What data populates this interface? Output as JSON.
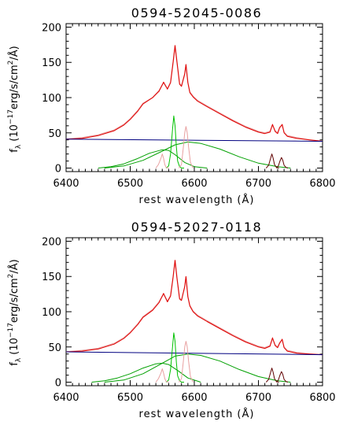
{
  "chart_data": [
    {
      "type": "line",
      "title": "0594-52045-0086",
      "xlabel": "rest wavelength (Å)",
      "ylabel": "f_λ (10^-17 erg/s/cm²/Å)",
      "ylabel_parts": {
        "f": "f",
        "lam": "λ",
        "mid": " (10",
        "exp": "−17",
        "unit": "erg/s/cm",
        "sq": "2",
        "tail": "/Å)"
      },
      "xlim": [
        6400,
        6800
      ],
      "ylim": [
        -5,
        205
      ],
      "xticks": [
        6400,
        6500,
        6600,
        6700,
        6800
      ],
      "yticks": [
        0,
        50,
        100,
        150,
        200
      ],
      "grid": false,
      "series": [
        {
          "color": "#e8a0a0",
          "role": "observed spectrum",
          "x": [
            6400,
            6425,
            6450,
            6475,
            6490,
            6500,
            6512,
            6520,
            6535,
            6545,
            6552,
            6558,
            6563,
            6567,
            6570,
            6573,
            6577,
            6580,
            6585,
            6587,
            6590,
            6593,
            6598,
            6605,
            6620,
            6640,
            6660,
            6680,
            6700,
            6710,
            6718,
            6722,
            6726,
            6730,
            6733,
            6737,
            6740,
            6745,
            6760,
            6780,
            6800
          ],
          "y": [
            41,
            43,
            47,
            54,
            62,
            70,
            82,
            92,
            100,
            110,
            121,
            113,
            122,
            150,
            173,
            150,
            120,
            117,
            133,
            146,
            122,
            108,
            102,
            96,
            88,
            78,
            68,
            59,
            52,
            50,
            52,
            61,
            53,
            50,
            58,
            61,
            51,
            46,
            43,
            40,
            38
          ]
        },
        {
          "color": "#e00000",
          "role": "total fit",
          "x": [
            6400,
            6425,
            6450,
            6475,
            6490,
            6500,
            6512,
            6520,
            6535,
            6545,
            6552,
            6558,
            6563,
            6567,
            6570,
            6573,
            6577,
            6580,
            6585,
            6587,
            6590,
            6593,
            6598,
            6605,
            6620,
            6640,
            6660,
            6680,
            6700,
            6710,
            6718,
            6722,
            6726,
            6730,
            6733,
            6737,
            6740,
            6745,
            6760,
            6780,
            6800
          ],
          "y": [
            41,
            42,
            46,
            53,
            61,
            69,
            81,
            91,
            100,
            109,
            122,
            112,
            121,
            151,
            174,
            150,
            119,
            116,
            134,
            147,
            121,
            107,
            101,
            95,
            87,
            77,
            67,
            58,
            51,
            49,
            51,
            62,
            52,
            49,
            57,
            62,
            50,
            45,
            42,
            40,
            38
          ]
        },
        {
          "color": "#000080",
          "role": "continuum",
          "x": [
            6400,
            6800
          ],
          "y": [
            41,
            38
          ]
        },
        {
          "color": "#00a000",
          "role": "broad component 1",
          "x": [
            6450,
            6470,
            6490,
            6510,
            6530,
            6550,
            6560,
            6570,
            6585,
            6600,
            6620
          ],
          "y": [
            0,
            2,
            6,
            13,
            21,
            26,
            25,
            19,
            8,
            2,
            0
          ]
        },
        {
          "color": "#00a000",
          "role": "broad component 2",
          "x": [
            6460,
            6490,
            6520,
            6550,
            6570,
            6590,
            6610,
            6640,
            6670,
            6700,
            6730,
            6750
          ],
          "y": [
            0,
            3,
            11,
            24,
            33,
            37,
            35,
            27,
            16,
            7,
            2,
            0
          ]
        },
        {
          "color": "#00c000",
          "role": "narrow Hα",
          "x": [
            6556,
            6560,
            6563,
            6566,
            6568,
            6570,
            6572,
            6574,
            6577,
            6580,
            6584
          ],
          "y": [
            0,
            3,
            20,
            55,
            74,
            60,
            30,
            10,
            2,
            0,
            0
          ]
        },
        {
          "color": "#e8a0a0",
          "role": "narrow [NII] 6548",
          "x": [
            6540,
            6544,
            6548,
            6550,
            6552,
            6554,
            6556,
            6560
          ],
          "y": [
            0,
            5,
            14,
            20,
            14,
            5,
            1,
            0
          ]
        },
        {
          "color": "#e8a0a0",
          "role": "narrow [NII] 6583",
          "x": [
            6576,
            6580,
            6583,
            6585,
            6587,
            6589,
            6591,
            6594,
            6598
          ],
          "y": [
            0,
            5,
            30,
            50,
            59,
            50,
            30,
            8,
            0
          ]
        },
        {
          "color": "#600000",
          "role": "narrow [SII] 6716",
          "x": [
            6712,
            6716,
            6719,
            6721,
            6723,
            6725,
            6728,
            6732
          ],
          "y": [
            0,
            4,
            14,
            20,
            14,
            5,
            1,
            0
          ]
        },
        {
          "color": "#600000",
          "role": "narrow [SII] 6731",
          "x": [
            6728,
            6731,
            6734,
            6736,
            6738,
            6740,
            6743,
            6746
          ],
          "y": [
            0,
            3,
            11,
            15,
            11,
            4,
            1,
            0
          ]
        }
      ]
    },
    {
      "type": "line",
      "title": "0594-52027-0118",
      "xlabel": "rest wavelength (Å)",
      "ylabel": "f_λ (10^-17 erg/s/cm²/Å)",
      "ylabel_parts": {
        "f": "f",
        "lam": "λ",
        "mid": " (10",
        "exp": "−17",
        "unit": "erg/s/cm",
        "sq": "2",
        "tail": "/Å)"
      },
      "xlim": [
        6400,
        6800
      ],
      "ylim": [
        -5,
        205
      ],
      "xticks": [
        6400,
        6500,
        6600,
        6700,
        6800
      ],
      "yticks": [
        0,
        50,
        100,
        150,
        200
      ],
      "grid": false,
      "series": [
        {
          "color": "#e8a0a0",
          "role": "observed spectrum",
          "x": [
            6400,
            6425,
            6450,
            6475,
            6490,
            6500,
            6512,
            6520,
            6535,
            6545,
            6552,
            6558,
            6563,
            6567,
            6570,
            6573,
            6577,
            6580,
            6585,
            6587,
            6590,
            6593,
            6598,
            6605,
            6620,
            6640,
            6660,
            6680,
            6700,
            6710,
            6718,
            6722,
            6726,
            6730,
            6733,
            6737,
            6740,
            6745,
            6760,
            6780,
            6800
          ],
          "y": [
            43,
            45,
            48,
            55,
            63,
            71,
            83,
            93,
            103,
            114,
            125,
            115,
            123,
            149,
            172,
            148,
            119,
            117,
            135,
            149,
            122,
            109,
            101,
            95,
            87,
            77,
            67,
            58,
            51,
            49,
            52,
            62,
            53,
            50,
            56,
            60,
            50,
            45,
            42,
            40,
            39
          ]
        },
        {
          "color": "#e00000",
          "role": "total fit",
          "x": [
            6400,
            6425,
            6450,
            6475,
            6490,
            6500,
            6512,
            6520,
            6535,
            6545,
            6552,
            6558,
            6563,
            6567,
            6570,
            6573,
            6577,
            6580,
            6585,
            6587,
            6590,
            6593,
            6598,
            6605,
            6620,
            6640,
            6660,
            6680,
            6700,
            6710,
            6718,
            6722,
            6726,
            6730,
            6733,
            6737,
            6740,
            6745,
            6760,
            6780,
            6800
          ],
          "y": [
            43,
            44,
            47,
            54,
            62,
            70,
            82,
            92,
            102,
            113,
            126,
            114,
            122,
            150,
            173,
            147,
            118,
            116,
            136,
            150,
            121,
            108,
            100,
            94,
            86,
            76,
            66,
            57,
            50,
            48,
            51,
            63,
            52,
            49,
            55,
            61,
            49,
            44,
            41,
            40,
            39
          ]
        },
        {
          "color": "#000080",
          "role": "continuum",
          "x": [
            6400,
            6800
          ],
          "y": [
            43,
            39
          ]
        },
        {
          "color": "#00a000",
          "role": "broad component 1",
          "x": [
            6440,
            6460,
            6480,
            6500,
            6520,
            6540,
            6550,
            6560,
            6575,
            6590,
            6610
          ],
          "y": [
            0,
            2,
            6,
            12,
            20,
            26,
            27,
            25,
            16,
            6,
            0
          ]
        },
        {
          "color": "#00a000",
          "role": "broad component 2",
          "x": [
            6460,
            6490,
            6520,
            6550,
            6570,
            6590,
            6610,
            6640,
            6670,
            6700,
            6730,
            6750
          ],
          "y": [
            0,
            3,
            12,
            27,
            37,
            40,
            38,
            30,
            18,
            8,
            2,
            0
          ]
        },
        {
          "color": "#00c000",
          "role": "narrow Hα",
          "x": [
            6556,
            6560,
            6563,
            6566,
            6568,
            6570,
            6572,
            6574,
            6577,
            6580,
            6584
          ],
          "y": [
            0,
            3,
            18,
            50,
            70,
            58,
            28,
            9,
            2,
            0,
            0
          ]
        },
        {
          "color": "#e8a0a0",
          "role": "narrow [NII] 6548",
          "x": [
            6540,
            6544,
            6548,
            6550,
            6552,
            6554,
            6556,
            6560
          ],
          "y": [
            0,
            5,
            13,
            19,
            13,
            5,
            1,
            0
          ]
        },
        {
          "color": "#e8a0a0",
          "role": "narrow [NII] 6583",
          "x": [
            6576,
            6580,
            6583,
            6585,
            6587,
            6589,
            6591,
            6594,
            6598
          ],
          "y": [
            0,
            5,
            30,
            50,
            58,
            50,
            30,
            8,
            0
          ]
        },
        {
          "color": "#600000",
          "role": "narrow [SII] 6716",
          "x": [
            6712,
            6716,
            6719,
            6721,
            6723,
            6725,
            6728,
            6732
          ],
          "y": [
            0,
            4,
            14,
            20,
            14,
            5,
            1,
            0
          ]
        },
        {
          "color": "#600000",
          "role": "narrow [SII] 6731",
          "x": [
            6728,
            6731,
            6734,
            6736,
            6738,
            6740,
            6743,
            6746
          ],
          "y": [
            0,
            3,
            11,
            15,
            11,
            4,
            1,
            0
          ]
        }
      ]
    }
  ]
}
